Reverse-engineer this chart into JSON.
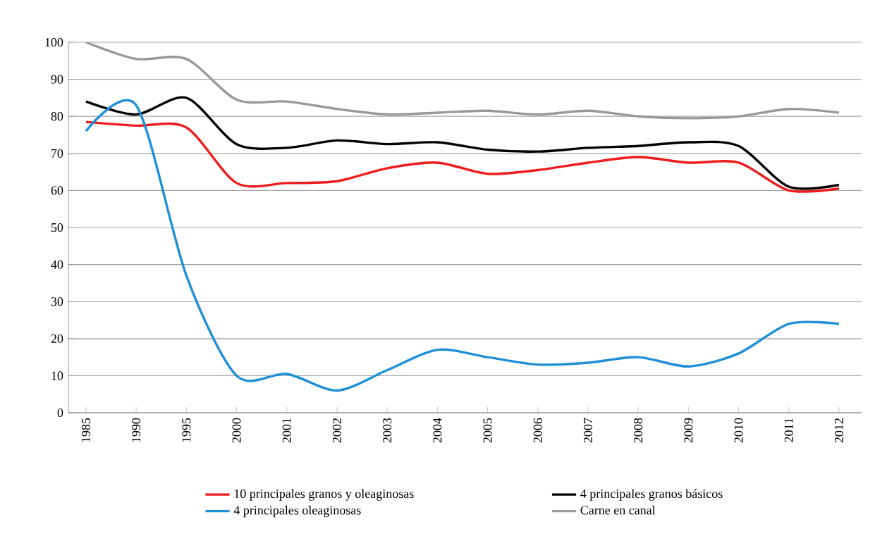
{
  "chart_data": {
    "type": "line",
    "categories": [
      "1985",
      "1990",
      "1995",
      "2000",
      "2001",
      "2002",
      "2003",
      "2004",
      "2005",
      "2006",
      "2007",
      "2008",
      "2009",
      "2010",
      "2011",
      "2012"
    ],
    "ylim": [
      0,
      100
    ],
    "yticks": [
      0,
      10,
      20,
      30,
      40,
      50,
      60,
      70,
      80,
      90,
      100
    ],
    "grid": "y",
    "legend": "bottom",
    "marker": "none",
    "series": [
      {
        "name": "10 principales granos y oleaginosas",
        "color": "#ee1c1c",
        "values": [
          78.5,
          77.5,
          77,
          62,
          62,
          62.5,
          66,
          67.5,
          64.5,
          65.5,
          67.5,
          69,
          67.5,
          67.5,
          60,
          60.5
        ]
      },
      {
        "name": "4 principales granos básicos",
        "color": "#000000",
        "values": [
          84,
          80.5,
          85,
          72.5,
          71.5,
          73.5,
          72.5,
          73,
          71,
          70.5,
          71.5,
          72,
          73,
          72,
          61,
          61.5
        ]
      },
      {
        "name": "4 principales oleaginosas",
        "color": "#1f8fd6",
        "values": [
          76,
          83,
          37,
          10,
          10.5,
          6,
          11.5,
          17,
          15,
          13,
          13.5,
          15,
          12.5,
          16,
          24,
          24
        ]
      },
      {
        "name": "Carne en canal",
        "color": "#999999",
        "values": [
          100,
          95.5,
          95.5,
          84.5,
          84,
          82,
          80.5,
          81,
          81.5,
          80.5,
          81.5,
          80,
          79.5,
          80,
          82,
          81
        ]
      }
    ]
  }
}
